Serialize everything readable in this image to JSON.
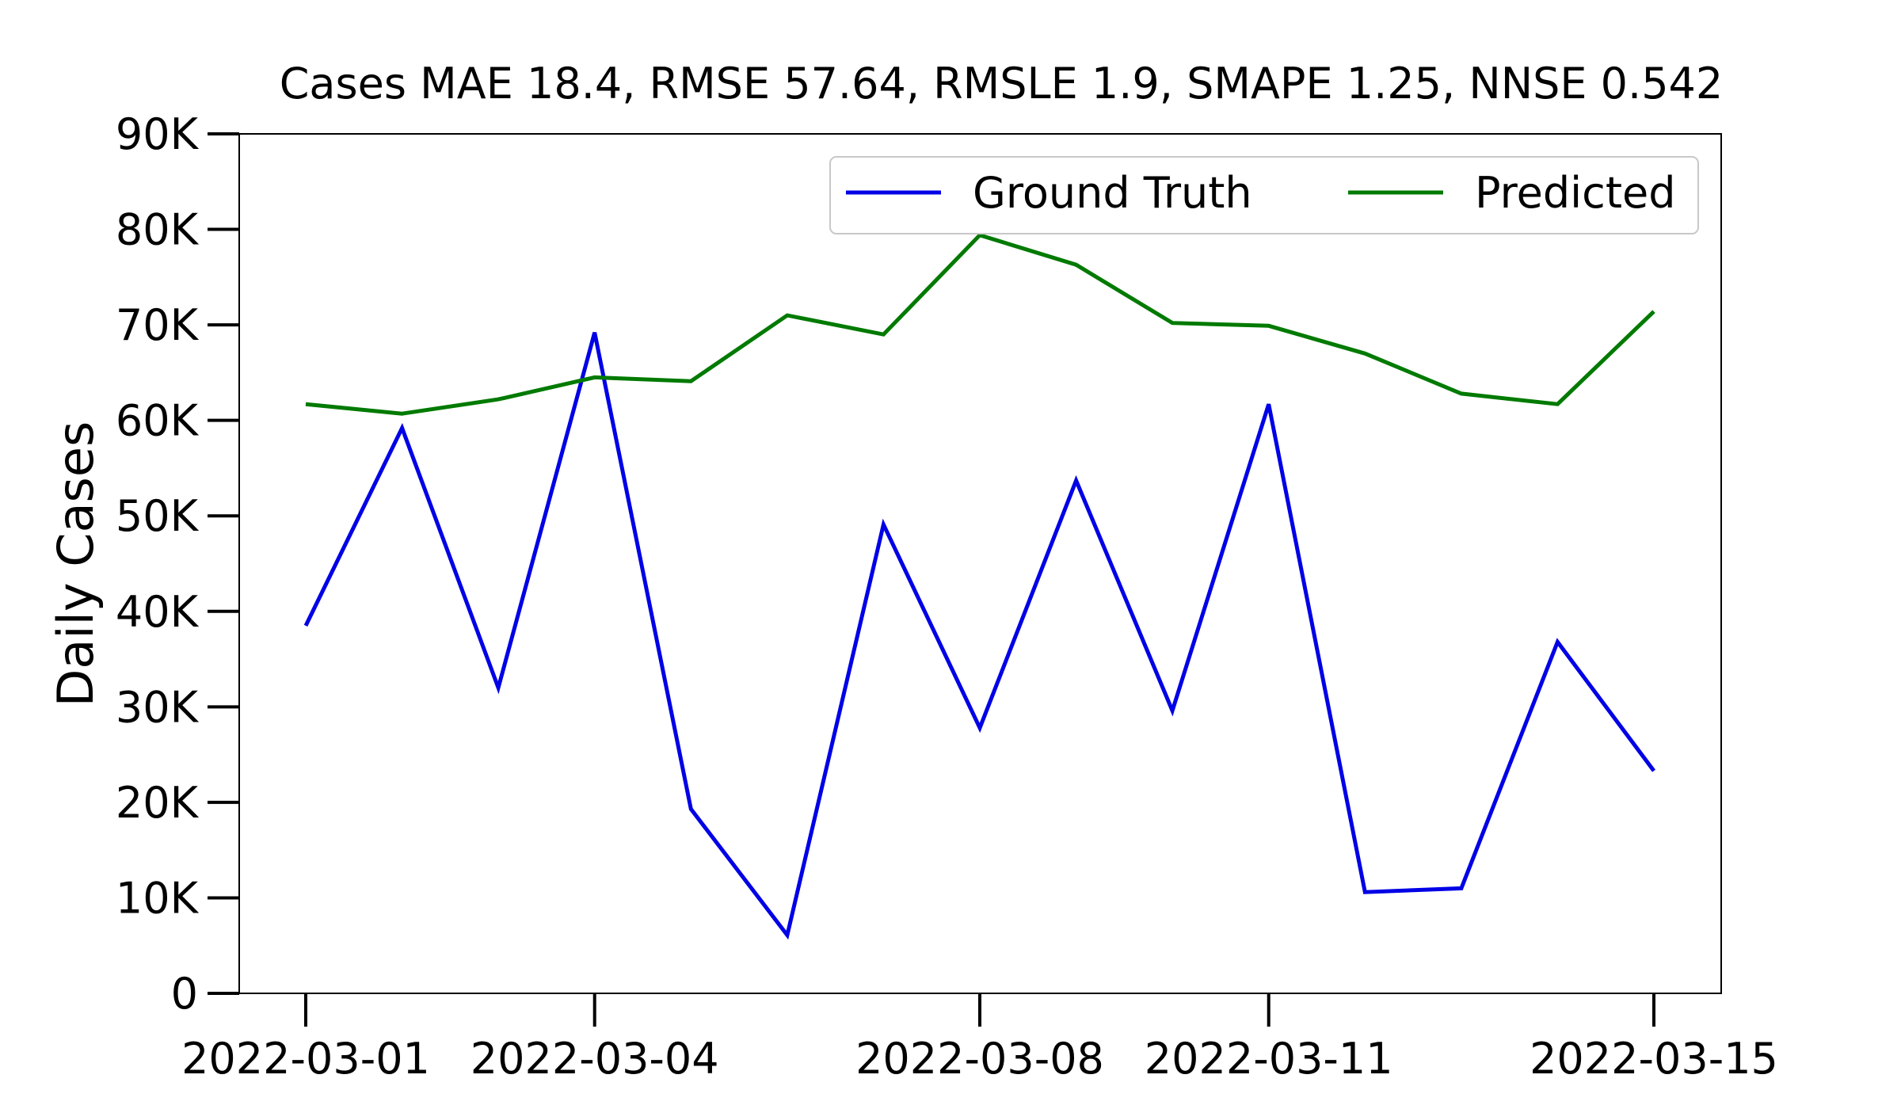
{
  "chart_data": {
    "type": "line",
    "title": "Cases MAE 18.4, RMSE 57.64, RMSLE 1.9, SMAPE 1.25, NNSE 0.542",
    "xlabel": "",
    "ylabel": "Daily Cases",
    "x": [
      "2022-03-01",
      "2022-03-02",
      "2022-03-03",
      "2022-03-04",
      "2022-03-05",
      "2022-03-06",
      "2022-03-07",
      "2022-03-08",
      "2022-03-09",
      "2022-03-10",
      "2022-03-11",
      "2022-03-12",
      "2022-03-13",
      "2022-03-14",
      "2022-03-15"
    ],
    "xticks": [
      "2022-03-01",
      "2022-03-04",
      "2022-03-08",
      "2022-03-11",
      "2022-03-15"
    ],
    "ylim": [
      0,
      90000
    ],
    "yticks": [
      0,
      10000,
      20000,
      30000,
      40000,
      50000,
      60000,
      70000,
      80000,
      90000
    ],
    "ytick_labels": [
      "0",
      "10K",
      "20K",
      "30K",
      "40K",
      "50K",
      "60K",
      "70K",
      "80K",
      "90K"
    ],
    "grid": false,
    "legend_position": "top-right",
    "series": [
      {
        "name": "Ground Truth",
        "color": "#0000e6",
        "values": [
          38500,
          59200,
          32000,
          69200,
          19300,
          6100,
          49100,
          27800,
          53700,
          29600,
          61700,
          10600,
          11000,
          36800,
          23300
        ]
      },
      {
        "name": "Predicted",
        "color": "#007a00",
        "values": [
          61700,
          60700,
          62200,
          64500,
          64100,
          71000,
          69000,
          79400,
          76300,
          70200,
          69900,
          67000,
          62800,
          61700,
          71400
        ]
      }
    ]
  }
}
